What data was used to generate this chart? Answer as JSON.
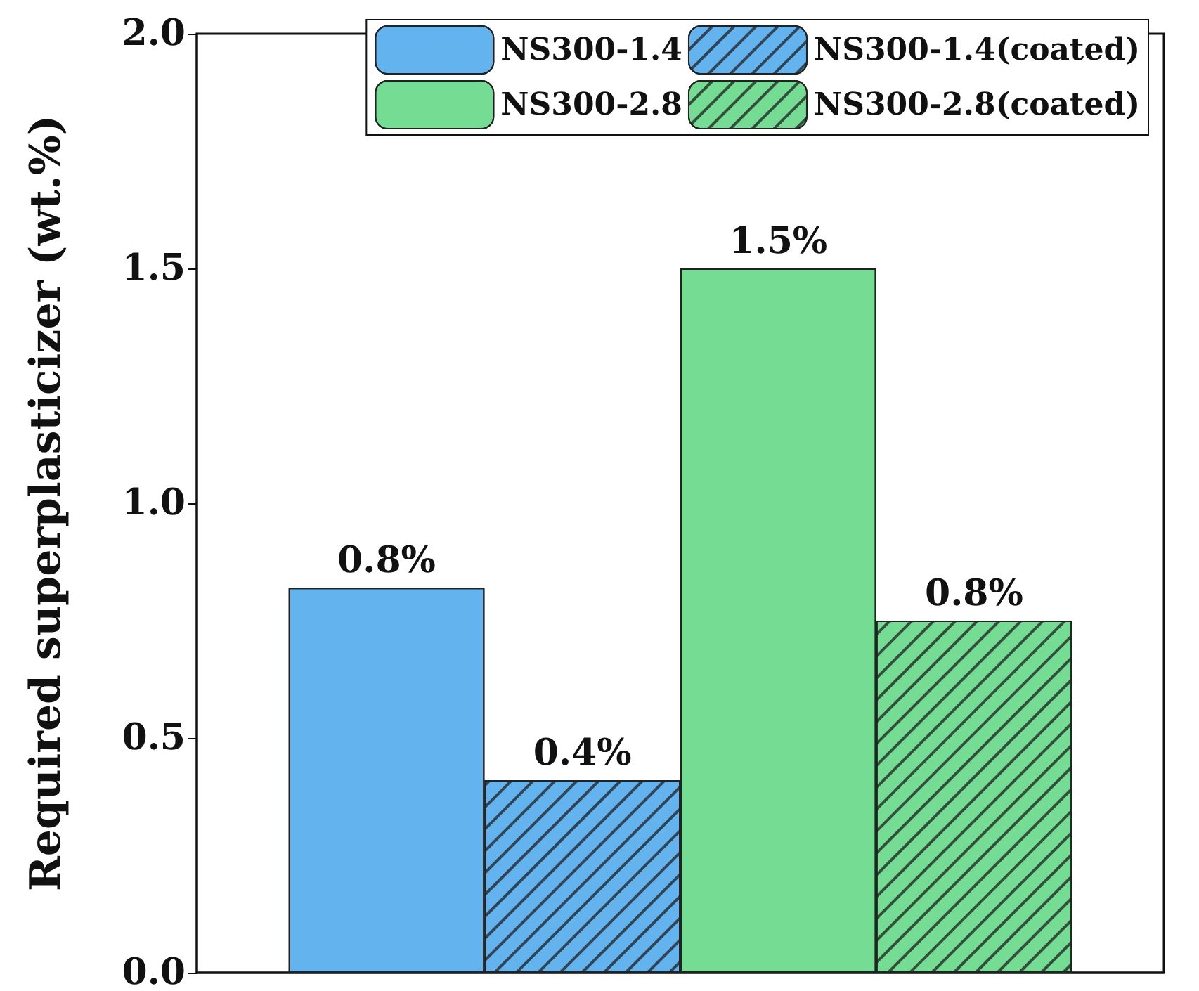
{
  "chart_data": {
    "type": "bar",
    "ylabel": "Required superplasticizer (wt.%)",
    "categories": [
      null
    ],
    "series": [
      {
        "name": "NS300-1.4",
        "color": "#63b3ee",
        "values": [
          0.82
        ],
        "value_labels": [
          "0.8%"
        ]
      },
      {
        "name": "NS300-1.4(coated)",
        "color": "#63b3ee",
        "values": [
          0.41
        ],
        "value_labels": [
          "0.4%"
        ]
      },
      {
        "name": "NS300-2.8",
        "color": "#74dd93",
        "values": [
          1.5
        ],
        "value_labels": [
          "1.5%"
        ]
      },
      {
        "name": "NS300-2.8(coated)",
        "color": "#74dd93",
        "values": [
          0.75
        ],
        "value_labels": [
          "0.8%"
        ]
      }
    ],
    "ylim": [
      0,
      2
    ],
    "yticks": [
      {
        "value": 0,
        "label": "0.0"
      },
      {
        "value": 0.5,
        "label": "0.5"
      },
      {
        "value": 1,
        "label": "1.0"
      },
      {
        "value": 1.5,
        "label": "1.5"
      },
      {
        "value": 2,
        "label": "2.0"
      }
    ],
    "grid": false,
    "legend": "top right",
    "tick_labels": "y"
  }
}
